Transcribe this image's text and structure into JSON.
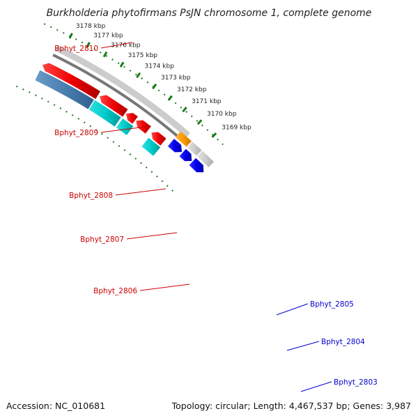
{
  "title": "Burkholderia phytofirmans PsJN chromosome 1, complete genome",
  "accession": "Accession: NC_010681",
  "topology": "Topology: circular; Length: 4,467,537 bp; Genes: 3,987",
  "ticks": [
    "3178 kbp",
    "3177 kbp",
    "3176 kbp",
    "3175 kbp",
    "3174 kbp",
    "3173 kbp",
    "3172 kbp",
    "3171 kbp",
    "3170 kbp",
    "3169 kbp"
  ],
  "genes": [
    {
      "name": "Bphyt_2810",
      "strand": "reverse",
      "color": "#cc0000"
    },
    {
      "name": "Bphyt_2809",
      "strand": "reverse",
      "color": "#cc0000"
    },
    {
      "name": "Bphyt_2808",
      "strand": "reverse",
      "color": "#cc0000"
    },
    {
      "name": "Bphyt_2807",
      "strand": "reverse",
      "color": "#cc0000"
    },
    {
      "name": "Bphyt_2806",
      "strand": "reverse",
      "color": "#cc0000"
    },
    {
      "name": "Bphyt_2805",
      "strand": "forward",
      "color": "#0000cc"
    },
    {
      "name": "Bphyt_2804",
      "strand": "forward",
      "color": "#0000cc"
    },
    {
      "name": "Bphyt_2803",
      "strand": "forward",
      "color": "#0000cc"
    }
  ],
  "colors": {
    "cds_reverse": "#ee0000",
    "cds_forward": "#0000ee",
    "cog_cyan": "#00cccc",
    "cog_steelblue": "#4a7fb0",
    "cog_orange": "#ff9900",
    "backbone": "#777777",
    "backbone_light": "#cccccc",
    "tick_green": "#1a7a1a"
  }
}
